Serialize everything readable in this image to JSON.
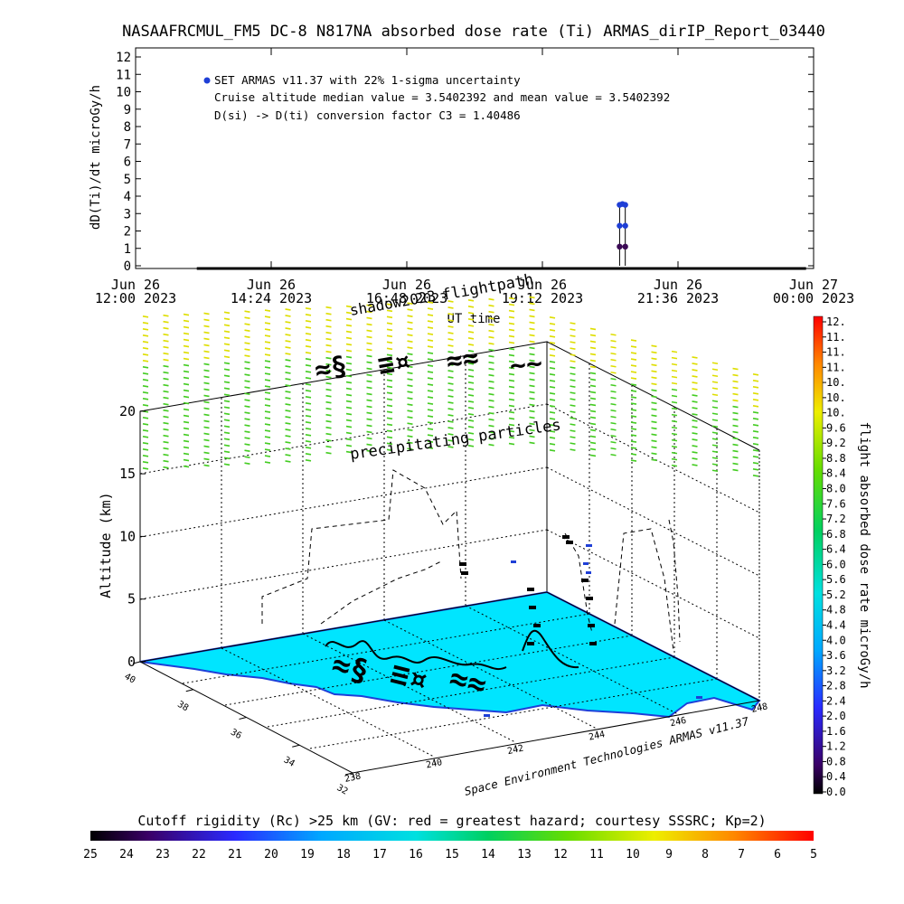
{
  "title": "NASAAFRCMUL_FM5 DC-8   N817NA absorbed dose rate (Ti) ARMAS_dirIP_Report_03440",
  "colors": {
    "trace": "#000000",
    "marker_blue": "#1f3fd6",
    "marker_purple": "#3b0a55",
    "land": "#00e5ff",
    "coast": "#1d3fd9",
    "precip_green": "#44cc22",
    "precip_yellow": "#dede00"
  },
  "chart_data": [
    {
      "type": "line",
      "ylabel": "dD(Ti)/dt microGy/h",
      "xlabel": "UT time",
      "ylim": [
        0,
        12
      ],
      "yticks": [
        "0",
        "1",
        "2",
        "3",
        "4",
        "5",
        "6",
        "7",
        "8",
        "9",
        "10",
        "11",
        "12"
      ],
      "xlim": [
        "2023-06-26 12:00",
        "2023-06-27 00:00"
      ],
      "xticks": [
        {
          "day": "Jun 26",
          "time": "12:00 2023"
        },
        {
          "day": "Jun 26",
          "time": "14:24 2023"
        },
        {
          "day": "Jun 26",
          "time": "16:48 2023"
        },
        {
          "day": "Jun 26",
          "time": "19:12 2023"
        },
        {
          "day": "Jun 26",
          "time": "21:36 2023"
        },
        {
          "day": "Jun 27",
          "time": "00:00 2023"
        }
      ],
      "legend": "SET ARMAS v11.37 with 22% 1-sigma uncertainty",
      "annotations": [
        "Cruise altitude median value = 3.5402392 and mean value = 3.5402392",
        "D(si) -> D(ti) conversion factor C3 = 1.40486"
      ],
      "baseline": {
        "x_start": "2023-06-26 13:05",
        "x_end": "2023-06-26 23:52",
        "y": 0
      },
      "points": [
        {
          "x": "2023-06-26 20:34",
          "y": 1.1
        },
        {
          "x": "2023-06-26 20:34",
          "y": 2.3
        },
        {
          "x": "2023-06-26 20:34",
          "y": 3.5
        },
        {
          "x": "2023-06-26 20:37",
          "y": 3.55
        },
        {
          "x": "2023-06-26 20:40",
          "y": 3.5
        },
        {
          "x": "2023-06-26 20:40",
          "y": 2.3
        },
        {
          "x": "2023-06-26 20:40",
          "y": 1.1
        }
      ]
    },
    {
      "type": "scatter",
      "zlabel": "Altitude (km)",
      "zticks": [
        "0",
        "5",
        "10",
        "15",
        "20"
      ],
      "y_ticks": [
        "32",
        "34",
        "36",
        "38",
        "40"
      ],
      "x_ticks": [
        "238",
        "240",
        "242",
        "244",
        "246",
        "248"
      ],
      "labels": {
        "flightpath": "flightpath",
        "shadow": "shadow",
        "shadow_suffix": "2023",
        "precipitating": "precipitating particles"
      },
      "credit": "Space Environment Technologies ARMAS v11.37"
    }
  ],
  "colorbar": {
    "label": "flight absorbed dose rate microGy/h",
    "ticks": [
      "12.",
      "11.",
      "11.",
      "11.",
      "10.",
      "10.",
      "10.",
      "9.6",
      "9.2",
      "8.8",
      "8.4",
      "8.0",
      "7.6",
      "7.2",
      "6.8",
      "6.4",
      "6.0",
      "5.6",
      "5.2",
      "4.8",
      "4.4",
      "4.0",
      "3.6",
      "3.2",
      "2.8",
      "2.4",
      "2.0",
      "1.6",
      "1.2",
      "0.8",
      "0.4",
      "0.0"
    ]
  },
  "rigidity": {
    "label": "Cutoff rigidity (Rc) >25 km (GV: red = greatest hazard; courtesy SSSRC; Kp=2)",
    "ticks": [
      "25",
      "24",
      "23",
      "22",
      "21",
      "20",
      "19",
      "18",
      "17",
      "16",
      "15",
      "14",
      "13",
      "12",
      "11",
      "10",
      "9",
      "8",
      "7",
      "6",
      "5"
    ]
  }
}
